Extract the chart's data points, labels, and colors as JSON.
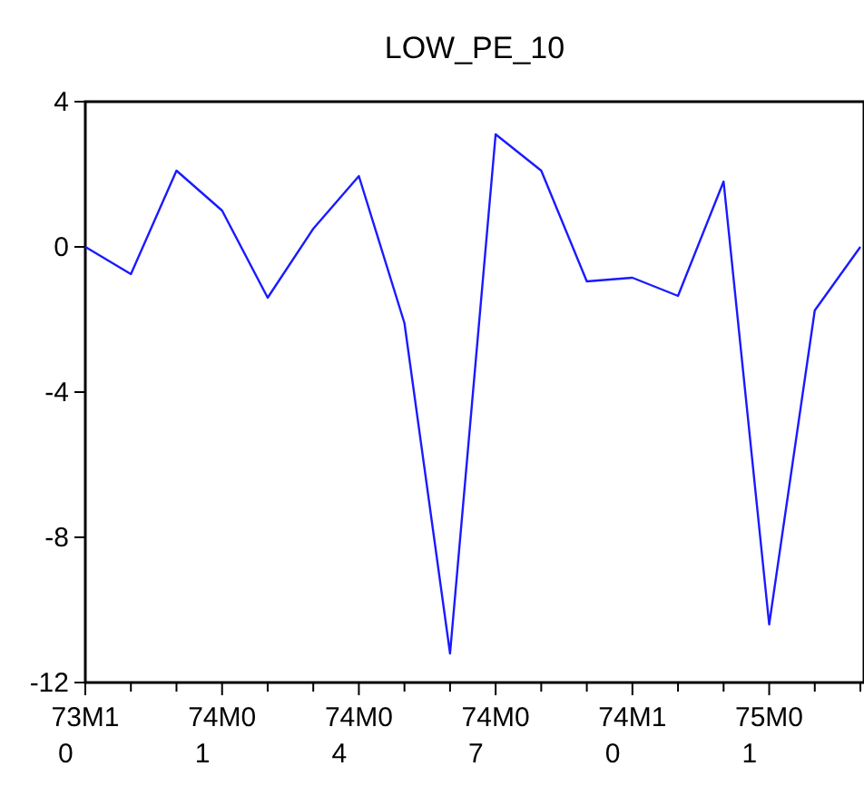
{
  "chart_data": {
    "type": "line",
    "title": "LOW_PE_10",
    "categories": [
      "73M10",
      null,
      null,
      "74M01",
      null,
      null,
      "74M04",
      null,
      null,
      "74M07",
      null,
      null,
      "74M10",
      null,
      null,
      "75M01",
      null,
      null
    ],
    "series": [
      {
        "color": "#1a1aff",
        "values": [
          0.0,
          -0.75,
          2.1,
          1.0,
          -1.4,
          0.5,
          1.95,
          -2.1,
          -11.2,
          3.1,
          2.1,
          -0.95,
          -0.85,
          -1.35,
          1.8,
          -10.4,
          -1.75,
          0.0
        ]
      }
    ],
    "ylim": [
      -12,
      4
    ],
    "yticks": [
      4,
      0,
      -4,
      -8,
      -12
    ],
    "grid": false
  }
}
